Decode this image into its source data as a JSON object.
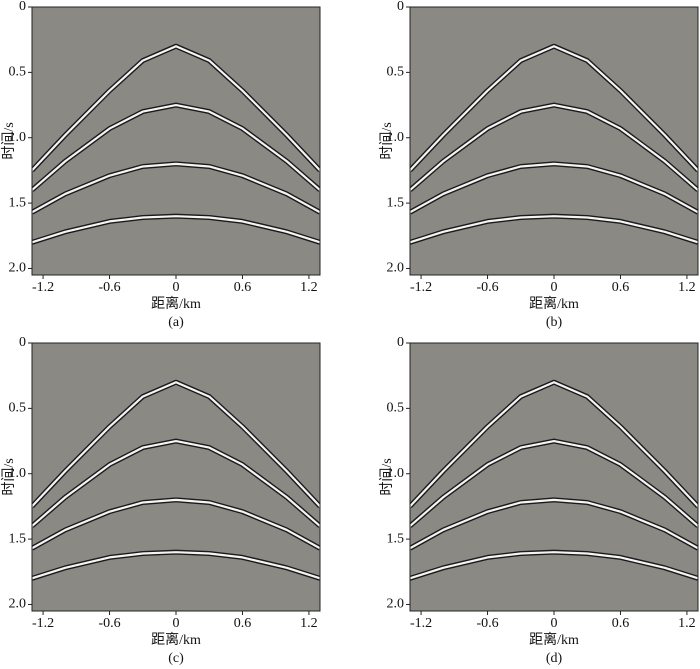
{
  "chart_data": [
    {
      "type": "line",
      "caption": "(a)",
      "xlabel": "距离/km",
      "ylabel": "时间/s",
      "x": [
        -1.3,
        -1.0,
        -0.6,
        -0.3,
        0,
        0.3,
        0.6,
        1.0,
        1.3
      ],
      "series": [
        {
          "color": "#f4f4f4",
          "values": [
            1.25,
            0.98,
            0.64,
            0.41,
            0.3,
            0.41,
            0.64,
            0.98,
            1.25
          ]
        },
        {
          "color": "#f4f4f4",
          "values": [
            1.4,
            1.18,
            0.93,
            0.8,
            0.75,
            0.8,
            0.93,
            1.18,
            1.4
          ]
        },
        {
          "color": "#f4f4f4",
          "values": [
            1.57,
            1.43,
            1.29,
            1.22,
            1.2,
            1.22,
            1.29,
            1.43,
            1.57
          ]
        },
        {
          "color": "#f4f4f4",
          "values": [
            1.8,
            1.72,
            1.64,
            1.61,
            1.6,
            1.61,
            1.64,
            1.72,
            1.8
          ]
        }
      ],
      "xlim": [
        -1.3,
        1.3
      ],
      "xticks": [
        -1.2,
        -0.6,
        0,
        0.6,
        1.2
      ],
      "ylim": [
        0,
        2.05
      ],
      "yticks": [
        0,
        0.5,
        {
          "value": 1,
          "label": "1.0"
        },
        1.5,
        {
          "value": 2,
          "label": "2.0"
        }
      ],
      "y_inverted": true,
      "background": "#8a8984"
    },
    {
      "type": "line",
      "caption": "(b)",
      "xlabel": "距离/km",
      "ylabel": "时间/s",
      "x": [
        -1.3,
        -1.0,
        -0.6,
        -0.3,
        0,
        0.3,
        0.6,
        1.0,
        1.3
      ],
      "series": [
        {
          "color": "#f4f4f4",
          "values": [
            1.25,
            0.98,
            0.64,
            0.41,
            0.3,
            0.41,
            0.64,
            0.98,
            1.25
          ]
        },
        {
          "color": "#f4f4f4",
          "values": [
            1.4,
            1.18,
            0.93,
            0.8,
            0.75,
            0.8,
            0.93,
            1.18,
            1.4
          ]
        },
        {
          "color": "#f4f4f4",
          "values": [
            1.57,
            1.43,
            1.29,
            1.22,
            1.2,
            1.22,
            1.29,
            1.43,
            1.57
          ]
        },
        {
          "color": "#f4f4f4",
          "values": [
            1.8,
            1.72,
            1.64,
            1.61,
            1.6,
            1.61,
            1.64,
            1.72,
            1.8
          ]
        }
      ],
      "xlim": [
        -1.3,
        1.3
      ],
      "xticks": [
        -1.2,
        -0.6,
        0,
        0.6,
        1.2
      ],
      "ylim": [
        0,
        2.05
      ],
      "yticks": [
        0,
        0.5,
        {
          "value": 1,
          "label": "1.0"
        },
        1.5,
        {
          "value": 2,
          "label": "2.0"
        }
      ],
      "y_inverted": true,
      "background": "#8a8984"
    },
    {
      "type": "line",
      "caption": "(c)",
      "xlabel": "距离/km",
      "ylabel": "时间/s",
      "x": [
        -1.3,
        -1.0,
        -0.6,
        -0.3,
        0,
        0.3,
        0.6,
        1.0,
        1.3
      ],
      "series": [
        {
          "color": "#f4f4f4",
          "values": [
            1.25,
            0.98,
            0.64,
            0.41,
            0.3,
            0.41,
            0.64,
            0.98,
            1.25
          ]
        },
        {
          "color": "#f4f4f4",
          "values": [
            1.4,
            1.18,
            0.93,
            0.8,
            0.75,
            0.8,
            0.93,
            1.18,
            1.4
          ]
        },
        {
          "color": "#f4f4f4",
          "values": [
            1.57,
            1.43,
            1.29,
            1.22,
            1.2,
            1.22,
            1.29,
            1.43,
            1.57
          ]
        },
        {
          "color": "#f4f4f4",
          "values": [
            1.8,
            1.72,
            1.64,
            1.61,
            1.6,
            1.61,
            1.64,
            1.72,
            1.8
          ]
        }
      ],
      "xlim": [
        -1.3,
        1.3
      ],
      "xticks": [
        -1.2,
        -0.6,
        0,
        0.6,
        1.2
      ],
      "ylim": [
        0,
        2.05
      ],
      "yticks": [
        0,
        0.5,
        {
          "value": 1,
          "label": "1.0"
        },
        1.5,
        {
          "value": 2,
          "label": "2.0"
        }
      ],
      "y_inverted": true,
      "background": "#8a8984"
    },
    {
      "type": "line",
      "caption": "(d)",
      "xlabel": "距离/km",
      "ylabel": "时间/s",
      "x": [
        -1.3,
        -1.0,
        -0.6,
        -0.3,
        0,
        0.3,
        0.6,
        1.0,
        1.3
      ],
      "series": [
        {
          "color": "#f4f4f4",
          "values": [
            1.25,
            0.98,
            0.64,
            0.41,
            0.3,
            0.41,
            0.64,
            0.98,
            1.25
          ]
        },
        {
          "color": "#f4f4f4",
          "values": [
            1.4,
            1.18,
            0.93,
            0.8,
            0.75,
            0.8,
            0.93,
            1.18,
            1.4
          ]
        },
        {
          "color": "#f4f4f4",
          "values": [
            1.57,
            1.43,
            1.29,
            1.22,
            1.2,
            1.22,
            1.29,
            1.43,
            1.57
          ]
        },
        {
          "color": "#f4f4f4",
          "values": [
            1.8,
            1.72,
            1.64,
            1.61,
            1.6,
            1.61,
            1.64,
            1.72,
            1.8
          ]
        }
      ],
      "xlim": [
        -1.3,
        1.3
      ],
      "xticks": [
        -1.2,
        -0.6,
        0,
        0.6,
        1.2
      ],
      "ylim": [
        0,
        2.05
      ],
      "yticks": [
        0,
        0.5,
        {
          "value": 1,
          "label": "1.0"
        },
        1.5,
        {
          "value": 2,
          "label": "2.0"
        }
      ],
      "y_inverted": true,
      "background": "#8a8984"
    }
  ]
}
